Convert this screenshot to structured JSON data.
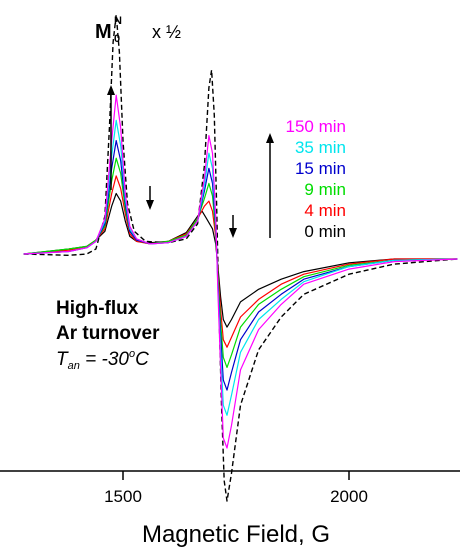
{
  "chart_data": {
    "type": "line",
    "xlabel": "Magnetic Field, G",
    "xlim": [
      1270,
      2240
    ],
    "ylim": [
      -1.05,
      1.0
    ],
    "x_ticks": [
      1500,
      2000
    ],
    "x_tick_labels": [
      "1500",
      "2000"
    ],
    "grid": false,
    "legend_position": "right-center",
    "annotations": {
      "ref_label": "M",
      "ref_sup": "N",
      "ref_sub": "0",
      "ref_scale": "x ½",
      "condition_line1": "High-flux",
      "condition_line2": "Ar turnover",
      "temp_T": "T",
      "temp_sub": "an",
      "temp_rest": " = -30",
      "temp_sup": "o",
      "temp_unit": "C"
    },
    "series": [
      {
        "name": "150 min",
        "color": "#ff00ff",
        "dashed": false,
        "points": [
          [
            1280,
            0.0
          ],
          [
            1380,
            0.01
          ],
          [
            1420,
            0.025
          ],
          [
            1440,
            0.05
          ],
          [
            1460,
            0.14
          ],
          [
            1475,
            0.45
          ],
          [
            1485,
            0.63
          ],
          [
            1495,
            0.5
          ],
          [
            1505,
            0.24
          ],
          [
            1515,
            0.11
          ],
          [
            1530,
            0.06
          ],
          [
            1560,
            0.04
          ],
          [
            1600,
            0.045
          ],
          [
            1640,
            0.07
          ],
          [
            1665,
            0.13
          ],
          [
            1680,
            0.3
          ],
          [
            1690,
            0.47
          ],
          [
            1698,
            0.4
          ],
          [
            1705,
            0.15
          ],
          [
            1710,
            -0.15
          ],
          [
            1716,
            -0.45
          ],
          [
            1722,
            -0.73
          ],
          [
            1730,
            -0.77
          ],
          [
            1740,
            -0.68
          ],
          [
            1760,
            -0.46
          ],
          [
            1800,
            -0.3
          ],
          [
            1850,
            -0.2
          ],
          [
            1900,
            -0.12
          ],
          [
            2000,
            -0.06
          ],
          [
            2100,
            -0.03
          ],
          [
            2240,
            -0.02
          ]
        ]
      },
      {
        "name": "35 min",
        "color": "#00e5ee",
        "dashed": false,
        "points": [
          [
            1280,
            0.0
          ],
          [
            1380,
            0.01
          ],
          [
            1420,
            0.025
          ],
          [
            1440,
            0.05
          ],
          [
            1460,
            0.13
          ],
          [
            1475,
            0.39
          ],
          [
            1485,
            0.53
          ],
          [
            1495,
            0.43
          ],
          [
            1505,
            0.22
          ],
          [
            1515,
            0.1
          ],
          [
            1530,
            0.06
          ],
          [
            1560,
            0.04
          ],
          [
            1600,
            0.045
          ],
          [
            1640,
            0.07
          ],
          [
            1665,
            0.13
          ],
          [
            1680,
            0.27
          ],
          [
            1690,
            0.4
          ],
          [
            1698,
            0.34
          ],
          [
            1705,
            0.13
          ],
          [
            1710,
            -0.13
          ],
          [
            1716,
            -0.38
          ],
          [
            1722,
            -0.6
          ],
          [
            1730,
            -0.64
          ],
          [
            1740,
            -0.56
          ],
          [
            1760,
            -0.39
          ],
          [
            1800,
            -0.26
          ],
          [
            1850,
            -0.18
          ],
          [
            1900,
            -0.11
          ],
          [
            2000,
            -0.05
          ],
          [
            2100,
            -0.025
          ],
          [
            2240,
            -0.02
          ]
        ]
      },
      {
        "name": "15 min",
        "color": "#0000cd",
        "dashed": false,
        "points": [
          [
            1280,
            0.0
          ],
          [
            1380,
            0.01
          ],
          [
            1420,
            0.025
          ],
          [
            1440,
            0.05
          ],
          [
            1460,
            0.12
          ],
          [
            1475,
            0.34
          ],
          [
            1485,
            0.45
          ],
          [
            1495,
            0.37
          ],
          [
            1505,
            0.2
          ],
          [
            1515,
            0.09
          ],
          [
            1530,
            0.055
          ],
          [
            1560,
            0.04
          ],
          [
            1600,
            0.045
          ],
          [
            1640,
            0.07
          ],
          [
            1665,
            0.13
          ],
          [
            1680,
            0.25
          ],
          [
            1690,
            0.34
          ],
          [
            1698,
            0.28
          ],
          [
            1705,
            0.11
          ],
          [
            1710,
            -0.11
          ],
          [
            1716,
            -0.32
          ],
          [
            1722,
            -0.5
          ],
          [
            1730,
            -0.54
          ],
          [
            1740,
            -0.47
          ],
          [
            1760,
            -0.34
          ],
          [
            1800,
            -0.23
          ],
          [
            1850,
            -0.16
          ],
          [
            1900,
            -0.1
          ],
          [
            2000,
            -0.05
          ],
          [
            2100,
            -0.025
          ],
          [
            2240,
            -0.02
          ]
        ]
      },
      {
        "name": "9 min",
        "color": "#00dd00",
        "dashed": false,
        "points": [
          [
            1280,
            0.0
          ],
          [
            1380,
            0.02
          ],
          [
            1420,
            0.03
          ],
          [
            1440,
            0.055
          ],
          [
            1460,
            0.11
          ],
          [
            1475,
            0.29
          ],
          [
            1485,
            0.38
          ],
          [
            1495,
            0.32
          ],
          [
            1505,
            0.18
          ],
          [
            1515,
            0.09
          ],
          [
            1530,
            0.055
          ],
          [
            1560,
            0.04
          ],
          [
            1600,
            0.05
          ],
          [
            1640,
            0.075
          ],
          [
            1665,
            0.14
          ],
          [
            1680,
            0.22
          ],
          [
            1690,
            0.28
          ],
          [
            1698,
            0.23
          ],
          [
            1705,
            0.09
          ],
          [
            1710,
            -0.09
          ],
          [
            1716,
            -0.27
          ],
          [
            1722,
            -0.41
          ],
          [
            1730,
            -0.45
          ],
          [
            1740,
            -0.4
          ],
          [
            1760,
            -0.29
          ],
          [
            1800,
            -0.2
          ],
          [
            1850,
            -0.14
          ],
          [
            1900,
            -0.09
          ],
          [
            2000,
            -0.045
          ],
          [
            2100,
            -0.025
          ],
          [
            2240,
            -0.02
          ]
        ]
      },
      {
        "name": "4 min",
        "color": "#ff0000",
        "dashed": false,
        "points": [
          [
            1280,
            0.0
          ],
          [
            1380,
            0.015
          ],
          [
            1420,
            0.03
          ],
          [
            1440,
            0.055
          ],
          [
            1460,
            0.1
          ],
          [
            1475,
            0.24
          ],
          [
            1485,
            0.31
          ],
          [
            1495,
            0.26
          ],
          [
            1505,
            0.16
          ],
          [
            1515,
            0.08
          ],
          [
            1530,
            0.05
          ],
          [
            1560,
            0.04
          ],
          [
            1600,
            0.05
          ],
          [
            1640,
            0.08
          ],
          [
            1665,
            0.14
          ],
          [
            1680,
            0.19
          ],
          [
            1690,
            0.21
          ],
          [
            1698,
            0.17
          ],
          [
            1705,
            0.07
          ],
          [
            1710,
            -0.07
          ],
          [
            1716,
            -0.22
          ],
          [
            1722,
            -0.34
          ],
          [
            1730,
            -0.37
          ],
          [
            1740,
            -0.33
          ],
          [
            1760,
            -0.25
          ],
          [
            1800,
            -0.18
          ],
          [
            1850,
            -0.12
          ],
          [
            1900,
            -0.08
          ],
          [
            2000,
            -0.04
          ],
          [
            2100,
            -0.02
          ],
          [
            2240,
            -0.02
          ]
        ]
      },
      {
        "name": "0 min",
        "color": "#000000",
        "dashed": false,
        "points": [
          [
            1280,
            0.0
          ],
          [
            1380,
            0.02
          ],
          [
            1420,
            0.03
          ],
          [
            1440,
            0.055
          ],
          [
            1460,
            0.09
          ],
          [
            1475,
            0.19
          ],
          [
            1485,
            0.24
          ],
          [
            1495,
            0.21
          ],
          [
            1505,
            0.13
          ],
          [
            1515,
            0.07
          ],
          [
            1530,
            0.05
          ],
          [
            1560,
            0.045
          ],
          [
            1600,
            0.05
          ],
          [
            1640,
            0.085
          ],
          [
            1665,
            0.15
          ],
          [
            1675,
            0.17
          ],
          [
            1685,
            0.14
          ],
          [
            1698,
            0.1
          ],
          [
            1705,
            0.04
          ],
          [
            1710,
            -0.05
          ],
          [
            1716,
            -0.17
          ],
          [
            1722,
            -0.26
          ],
          [
            1730,
            -0.29
          ],
          [
            1740,
            -0.26
          ],
          [
            1760,
            -0.19
          ],
          [
            1800,
            -0.14
          ],
          [
            1850,
            -0.1
          ],
          [
            1900,
            -0.07
          ],
          [
            2000,
            -0.035
          ],
          [
            2100,
            -0.02
          ],
          [
            2240,
            -0.02
          ]
        ]
      },
      {
        "name": "",
        "color": "#000000",
        "dashed": true,
        "points": [
          [
            1280,
            0.0
          ],
          [
            1380,
            -0.005
          ],
          [
            1420,
            0.0
          ],
          [
            1440,
            0.02
          ],
          [
            1460,
            0.15
          ],
          [
            1470,
            0.5
          ],
          [
            1478,
            0.84
          ],
          [
            1485,
            0.95
          ],
          [
            1492,
            0.8
          ],
          [
            1500,
            0.45
          ],
          [
            1510,
            0.2
          ],
          [
            1525,
            0.09
          ],
          [
            1550,
            0.05
          ],
          [
            1600,
            0.045
          ],
          [
            1640,
            0.06
          ],
          [
            1665,
            0.12
          ],
          [
            1680,
            0.35
          ],
          [
            1690,
            0.66
          ],
          [
            1696,
            0.73
          ],
          [
            1702,
            0.55
          ],
          [
            1707,
            0.2
          ],
          [
            1712,
            -0.2
          ],
          [
            1718,
            -0.6
          ],
          [
            1724,
            -0.9
          ],
          [
            1730,
            -0.98
          ],
          [
            1740,
            -0.87
          ],
          [
            1760,
            -0.6
          ],
          [
            1800,
            -0.38
          ],
          [
            1850,
            -0.25
          ],
          [
            1900,
            -0.16
          ],
          [
            2000,
            -0.08
          ],
          [
            2100,
            -0.04
          ],
          [
            2240,
            -0.02
          ]
        ]
      }
    ]
  }
}
